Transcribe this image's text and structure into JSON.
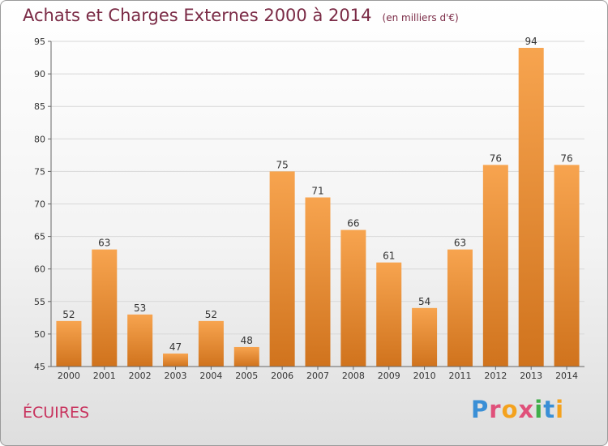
{
  "header": {
    "title": "Achats et Charges Externes 2000 à 2014",
    "subtitle": "(en milliers d'€)"
  },
  "footer": {
    "commune": "ÉCUIRES",
    "logo": {
      "letters": [
        "P",
        "r",
        "o",
        "x",
        "i",
        "t",
        "i"
      ],
      "colors": [
        "#3a8fd6",
        "#e0507a",
        "#f4a21e",
        "#e0507a",
        "#3fae49",
        "#3a8fd6",
        "#f4a21e"
      ]
    }
  },
  "colors": {
    "bar_top": "#f7a44f",
    "bar_bottom": "#d0731d",
    "grid": "#d8d8d8",
    "axis": "#666666"
  },
  "chart_data": {
    "type": "bar",
    "title": "Achats et Charges Externes 2000 à 2014",
    "subtitle": "(en milliers d'€)",
    "categories": [
      "2000",
      "2001",
      "2002",
      "2003",
      "2004",
      "2005",
      "2006",
      "2007",
      "2008",
      "2009",
      "2010",
      "2011",
      "2012",
      "2013",
      "2014"
    ],
    "values": [
      52,
      63,
      53,
      47,
      52,
      48,
      75,
      71,
      66,
      61,
      54,
      63,
      76,
      94,
      76
    ],
    "ylim": [
      45,
      95
    ],
    "yticks": [
      45,
      50,
      55,
      60,
      65,
      70,
      75,
      80,
      85,
      90,
      95
    ],
    "grid": true,
    "data_labels": true
  }
}
